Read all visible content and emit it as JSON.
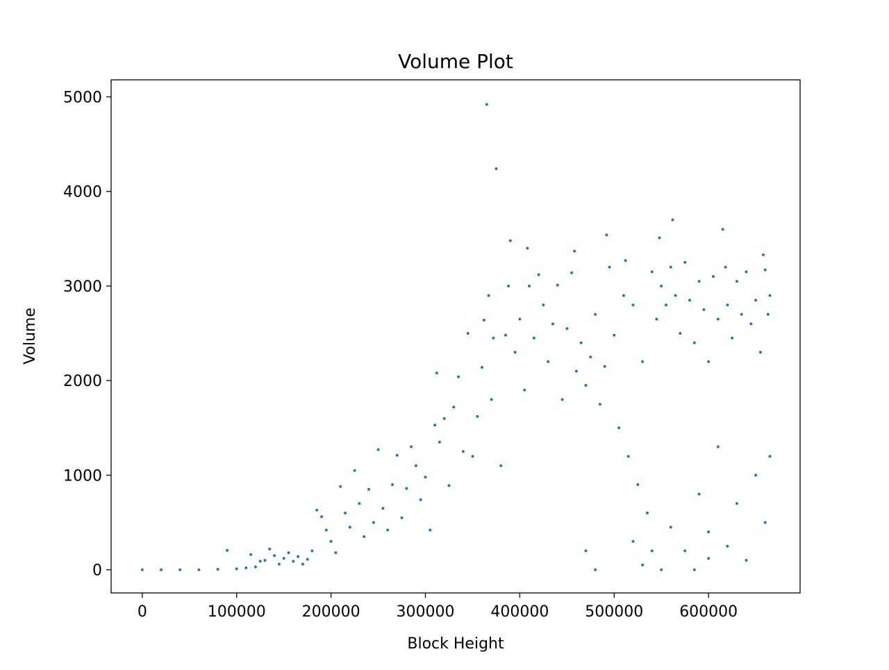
{
  "chart_data": {
    "type": "scatter",
    "title": "Volume Plot",
    "xlabel": "Block Height",
    "ylabel": "Volume",
    "xlim": [
      -33000,
      697000
    ],
    "ylim": [
      -245,
      5180
    ],
    "xticks": [
      0,
      100000,
      200000,
      300000,
      400000,
      500000,
      600000
    ],
    "xtick_labels": [
      "0",
      "100000",
      "200000",
      "300000",
      "400000",
      "500000",
      "600000"
    ],
    "yticks": [
      0,
      1000,
      2000,
      3000,
      4000,
      5000
    ],
    "ytick_labels": [
      "0",
      "1000",
      "2000",
      "3000",
      "4000",
      "5000"
    ],
    "grid": false,
    "legend": "none",
    "marker_color": "#1f77b4",
    "marker_size": 2,
    "series": [
      {
        "points": [
          [
            0,
            0
          ],
          [
            20000,
            0
          ],
          [
            40000,
            0
          ],
          [
            60000,
            0
          ],
          [
            80000,
            5
          ],
          [
            90000,
            205
          ],
          [
            100000,
            10
          ],
          [
            110000,
            20
          ],
          [
            115000,
            160
          ],
          [
            120000,
            30
          ],
          [
            125000,
            90
          ],
          [
            130000,
            100
          ],
          [
            135000,
            220
          ],
          [
            140000,
            150
          ],
          [
            145000,
            60
          ],
          [
            150000,
            120
          ],
          [
            155000,
            180
          ],
          [
            160000,
            90
          ],
          [
            165000,
            140
          ],
          [
            170000,
            60
          ],
          [
            175000,
            110
          ],
          [
            180000,
            200
          ],
          [
            185000,
            630
          ],
          [
            190000,
            560
          ],
          [
            195000,
            420
          ],
          [
            200000,
            300
          ],
          [
            205000,
            180
          ],
          [
            210000,
            880
          ],
          [
            215000,
            600
          ],
          [
            220000,
            450
          ],
          [
            225000,
            1050
          ],
          [
            230000,
            700
          ],
          [
            235000,
            350
          ],
          [
            240000,
            850
          ],
          [
            245000,
            500
          ],
          [
            250000,
            1270
          ],
          [
            255000,
            650
          ],
          [
            260000,
            420
          ],
          [
            265000,
            900
          ],
          [
            270000,
            1210
          ],
          [
            275000,
            550
          ],
          [
            280000,
            860
          ],
          [
            285000,
            1300
          ],
          [
            290000,
            1100
          ],
          [
            295000,
            740
          ],
          [
            300000,
            980
          ],
          [
            305000,
            420
          ],
          [
            310000,
            1530
          ],
          [
            312000,
            2080
          ],
          [
            315000,
            1350
          ],
          [
            320000,
            1600
          ],
          [
            325000,
            890
          ],
          [
            330000,
            1720
          ],
          [
            335000,
            2040
          ],
          [
            340000,
            1250
          ],
          [
            345000,
            2500
          ],
          [
            350000,
            1200
          ],
          [
            355000,
            1620
          ],
          [
            360000,
            2140
          ],
          [
            362000,
            2640
          ],
          [
            365000,
            4920
          ],
          [
            367000,
            2900
          ],
          [
            370000,
            1800
          ],
          [
            372000,
            2450
          ],
          [
            375000,
            4240
          ],
          [
            380000,
            1100
          ],
          [
            385000,
            2480
          ],
          [
            388000,
            3000
          ],
          [
            390000,
            3480
          ],
          [
            395000,
            2300
          ],
          [
            400000,
            2650
          ],
          [
            405000,
            1900
          ],
          [
            408000,
            3400
          ],
          [
            410000,
            3000
          ],
          [
            415000,
            2450
          ],
          [
            420000,
            3120
          ],
          [
            425000,
            2800
          ],
          [
            430000,
            2200
          ],
          [
            435000,
            2600
          ],
          [
            440000,
            3010
          ],
          [
            445000,
            1800
          ],
          [
            450000,
            2550
          ],
          [
            455000,
            3140
          ],
          [
            458000,
            3370
          ],
          [
            460000,
            2100
          ],
          [
            465000,
            2400
          ],
          [
            470000,
            1950
          ],
          [
            475000,
            2250
          ],
          [
            480000,
            2700
          ],
          [
            485000,
            1750
          ],
          [
            490000,
            2150
          ],
          [
            492000,
            3540
          ],
          [
            495000,
            3200
          ],
          [
            500000,
            2480
          ],
          [
            505000,
            1500
          ],
          [
            510000,
            2900
          ],
          [
            512000,
            3270
          ],
          [
            515000,
            1200
          ],
          [
            520000,
            2800
          ],
          [
            525000,
            900
          ],
          [
            530000,
            2200
          ],
          [
            535000,
            600
          ],
          [
            540000,
            3150
          ],
          [
            545000,
            2650
          ],
          [
            548000,
            3510
          ],
          [
            550000,
            3000
          ],
          [
            555000,
            2800
          ],
          [
            560000,
            3200
          ],
          [
            562000,
            3700
          ],
          [
            565000,
            2900
          ],
          [
            570000,
            2500
          ],
          [
            575000,
            3250
          ],
          [
            580000,
            2850
          ],
          [
            585000,
            2400
          ],
          [
            590000,
            3050
          ],
          [
            595000,
            2750
          ],
          [
            600000,
            2200
          ],
          [
            605000,
            3100
          ],
          [
            610000,
            2650
          ],
          [
            615000,
            3600
          ],
          [
            618000,
            3200
          ],
          [
            620000,
            2800
          ],
          [
            625000,
            2450
          ],
          [
            630000,
            3050
          ],
          [
            635000,
            2700
          ],
          [
            640000,
            3150
          ],
          [
            645000,
            2600
          ],
          [
            650000,
            2850
          ],
          [
            655000,
            2300
          ],
          [
            658000,
            3330
          ],
          [
            660000,
            3170
          ],
          [
            663000,
            2700
          ],
          [
            665000,
            2900
          ],
          [
            600000,
            400
          ],
          [
            620000,
            250
          ],
          [
            640000,
            100
          ],
          [
            660000,
            500
          ],
          [
            520000,
            300
          ],
          [
            530000,
            50
          ],
          [
            540000,
            200
          ],
          [
            550000,
            0
          ],
          [
            560000,
            450
          ],
          [
            575000,
            200
          ],
          [
            585000,
            0
          ],
          [
            590000,
            800
          ],
          [
            600000,
            120
          ],
          [
            610000,
            1300
          ],
          [
            630000,
            700
          ],
          [
            650000,
            1000
          ],
          [
            665000,
            1200
          ],
          [
            480000,
            0
          ],
          [
            470000,
            200
          ]
        ]
      }
    ]
  }
}
